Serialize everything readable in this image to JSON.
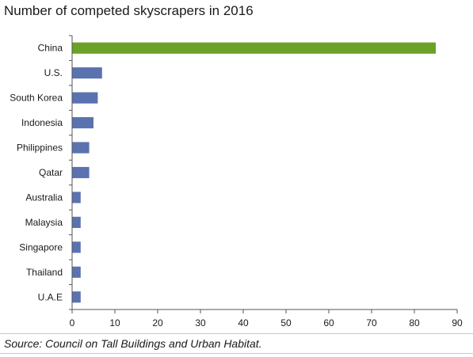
{
  "chart_data": {
    "type": "bar",
    "orientation": "horizontal",
    "title": "Number of competed skyscrapers in 2016",
    "xlabel": "",
    "ylabel": "",
    "categories": [
      "China",
      "U.S.",
      "South Korea",
      "Indonesia",
      "Philippines",
      "Qatar",
      "Australia",
      "Malaysia",
      "Singapore",
      "Thailand",
      "U.A.E"
    ],
    "values": [
      85,
      7,
      6,
      5,
      4,
      4,
      2,
      2,
      2,
      2,
      2
    ],
    "bar_colors": [
      "#6aa126",
      "#5b72b0",
      "#5b72b0",
      "#5b72b0",
      "#5b72b0",
      "#5b72b0",
      "#5b72b0",
      "#5b72b0",
      "#5b72b0",
      "#5b72b0",
      "#5b72b0"
    ],
    "xlim": [
      0,
      90
    ],
    "xticks": [
      0,
      10,
      20,
      30,
      40,
      50,
      60,
      70,
      80,
      90
    ],
    "grid": false,
    "legend": "none",
    "source": "Source: Council on Tall Buildings and Urban Habitat."
  }
}
